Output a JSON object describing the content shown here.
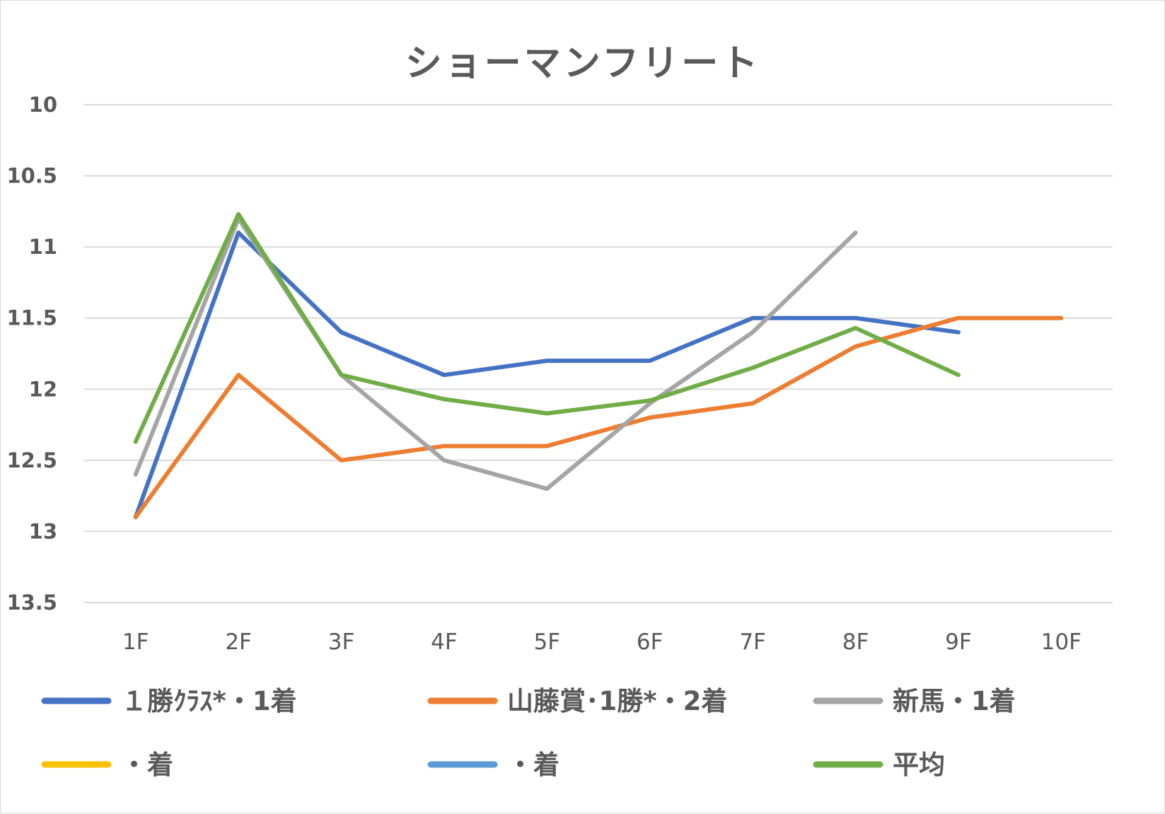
{
  "chart_data": {
    "type": "line",
    "title": "ショーマンフリート",
    "categories": [
      "1F",
      "2F",
      "3F",
      "4F",
      "5F",
      "6F",
      "7F",
      "8F",
      "9F",
      "10F"
    ],
    "y_tick_labels": [
      "10",
      "10.5",
      "11",
      "11.5",
      "12",
      "12.5",
      "13",
      "13.5"
    ],
    "ylim": [
      10,
      13.5
    ],
    "y_reversed": true,
    "grid": true,
    "legend_position": "bottom",
    "series": [
      {
        "name": "１勝ｸﾗｽ*・1着",
        "color": "#4472C4",
        "values": [
          12.9,
          10.9,
          11.6,
          11.9,
          11.8,
          11.8,
          11.5,
          11.5,
          11.6,
          null
        ]
      },
      {
        "name": "山藤賞･1勝*・2着",
        "color": "#ED7D31",
        "values": [
          12.9,
          11.9,
          12.5,
          12.4,
          12.4,
          12.2,
          12.1,
          11.7,
          11.5,
          11.5
        ]
      },
      {
        "name": "新馬・1着",
        "color": "#A5A5A5",
        "values": [
          12.6,
          10.8,
          11.9,
          12.5,
          12.7,
          12.1,
          11.6,
          10.9,
          null,
          null
        ]
      },
      {
        "name": "・着",
        "color": "#FFC000",
        "values": [
          null,
          null,
          null,
          null,
          null,
          null,
          null,
          null,
          null,
          null
        ]
      },
      {
        "name": "・着",
        "color": "#5B9BD5",
        "values": [
          null,
          null,
          null,
          null,
          null,
          null,
          null,
          null,
          null,
          null
        ]
      },
      {
        "name": "平均",
        "color": "#70AD47",
        "values": [
          12.37,
          10.77,
          11.9,
          12.07,
          12.17,
          12.08,
          11.85,
          11.57,
          11.9,
          null
        ]
      }
    ]
  }
}
